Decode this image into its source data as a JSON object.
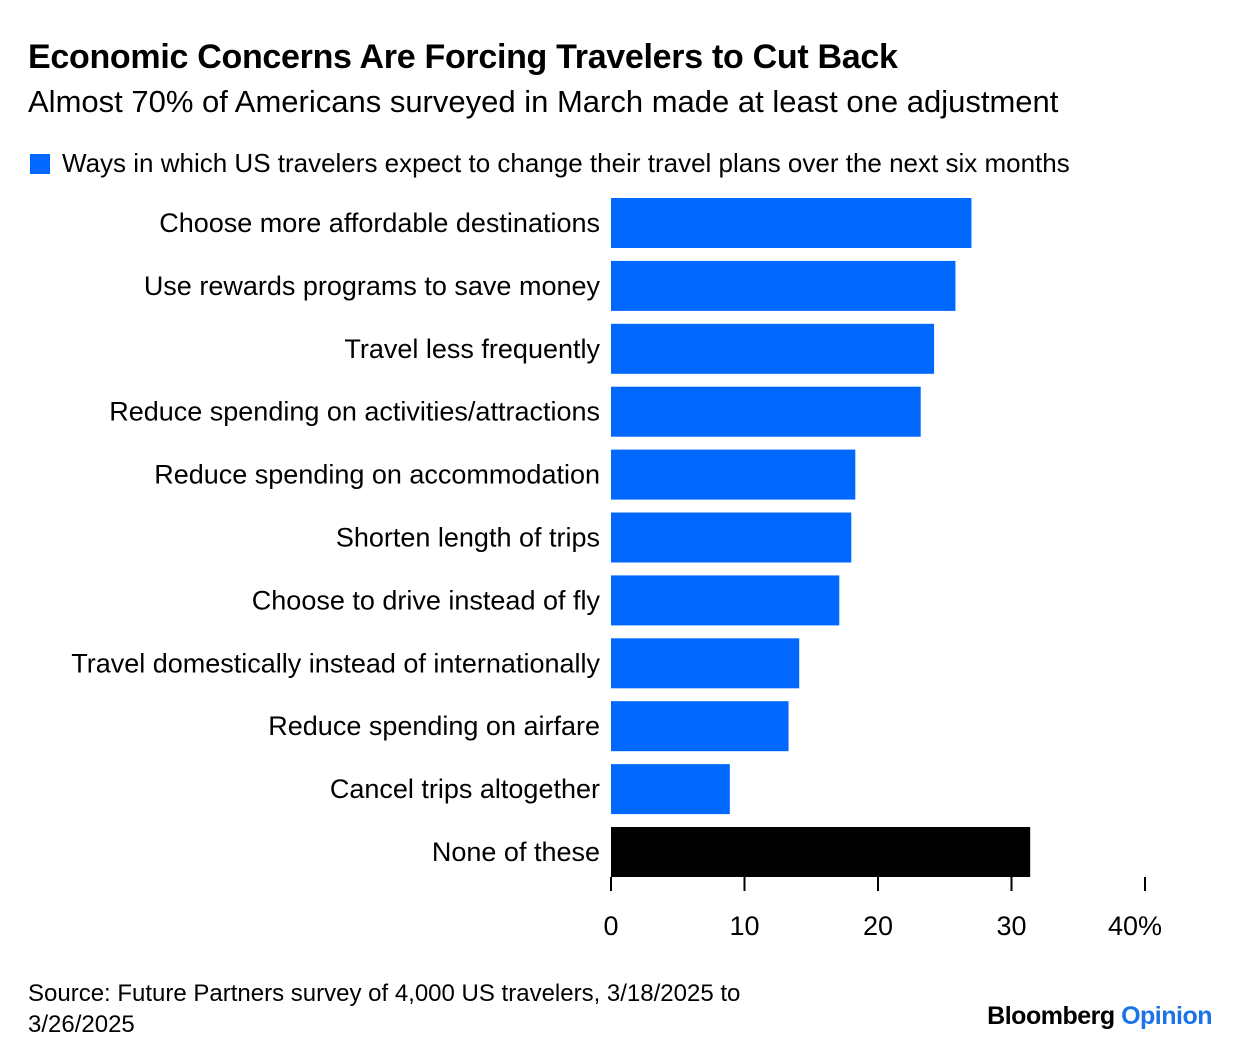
{
  "header": {
    "title": "Economic Concerns Are Forcing Travelers to Cut Back",
    "subtitle": "Almost 70% of Americans surveyed in March made at least one adjustment"
  },
  "legend": {
    "label": "Ways in which US travelers expect to change their travel plans over the next six months"
  },
  "colors": {
    "bar": "#0068ff",
    "highlight": "#000000",
    "brand_accent": "#1a73e8"
  },
  "chart_data": {
    "type": "bar",
    "orientation": "horizontal",
    "categories": [
      "Choose more affordable destinations",
      "Use rewards programs to save money",
      "Travel less frequently",
      "Reduce spending on activities/attractions",
      "Reduce spending on accommodation",
      "Shorten length of trips",
      "Choose to drive instead of fly",
      "Travel domestically instead of internationally",
      "Reduce spending on airfare",
      "Cancel trips altogether",
      "None of these"
    ],
    "values": [
      27,
      25.8,
      24.2,
      23.2,
      18.3,
      18,
      17.1,
      14.1,
      13.3,
      8.9,
      31.4
    ],
    "highlight_index": 10,
    "xlim": [
      0,
      40
    ],
    "xticks": [
      {
        "value": 0,
        "label": "0"
      },
      {
        "value": 10,
        "label": "10"
      },
      {
        "value": 20,
        "label": "20"
      },
      {
        "value": 30,
        "label": "30"
      },
      {
        "value": 40,
        "label": "40%"
      }
    ],
    "grid": false,
    "legend_position": "top-left"
  },
  "footer": {
    "source": "Source: Future Partners survey of 4,000 US travelers, 3/18/2025 to 3/26/2025",
    "brand_name": "Bloomberg",
    "brand_section": "Opinion"
  }
}
